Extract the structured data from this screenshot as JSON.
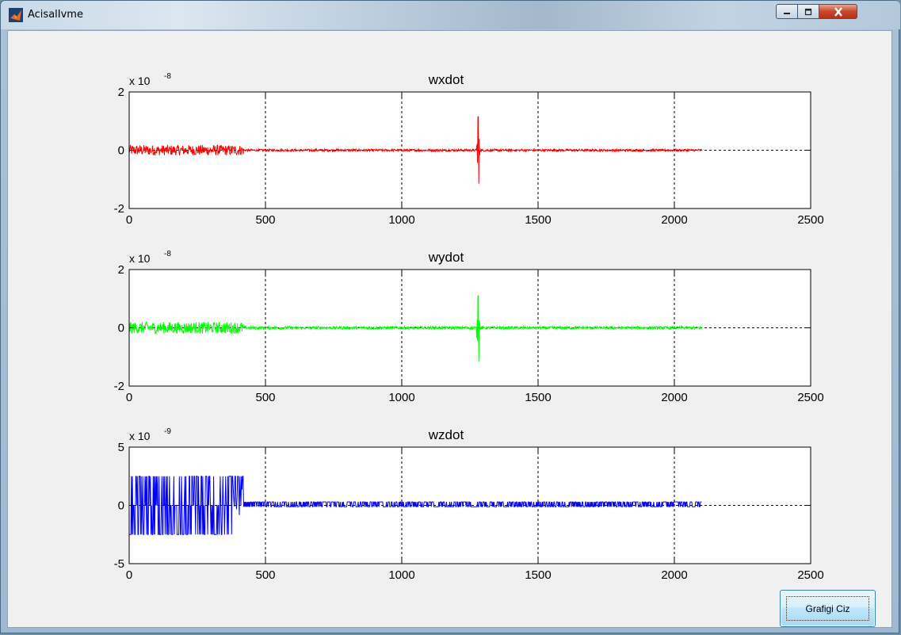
{
  "window": {
    "title": "AcisalIvme",
    "controls": {
      "minimize_icon": "minimize-icon",
      "maximize_icon": "maximize-icon",
      "close_icon": "close-icon"
    }
  },
  "button": {
    "label": "Grafigi Ciz"
  },
  "chart_data": [
    {
      "type": "line",
      "title": "wxdot",
      "multiplier": "x 10",
      "exponent": "-8",
      "color": "#ff0000",
      "xlim": [
        0,
        2500
      ],
      "ylim": [
        -2,
        2
      ],
      "xticks": [
        "0",
        "500",
        "1000",
        "1500",
        "2000",
        "2500"
      ],
      "yticks": [
        "2",
        "0",
        "-2"
      ],
      "grid": true,
      "x_extent": [
        0,
        2100
      ],
      "noise_amplitude": {
        "x0_400": 0.18,
        "x400_2100": 0.04
      },
      "spike": {
        "x": 1280,
        "max": 1.15,
        "min": -1.15
      }
    },
    {
      "type": "line",
      "title": "wydot",
      "multiplier": "x 10",
      "exponent": "-8",
      "color": "#00ff00",
      "xlim": [
        0,
        2500
      ],
      "ylim": [
        -2,
        2
      ],
      "xticks": [
        "0",
        "500",
        "1000",
        "1500",
        "2000",
        "2500"
      ],
      "yticks": [
        "2",
        "0",
        "-2"
      ],
      "grid": true,
      "x_extent": [
        0,
        2100
      ],
      "noise_amplitude": {
        "x0_400": 0.2,
        "x400_2100": 0.05
      },
      "spike": {
        "x": 1280,
        "max": 1.1,
        "min": -1.15
      }
    },
    {
      "type": "line",
      "title": "wzdot",
      "multiplier": "x 10",
      "exponent": "-9",
      "color": "#0000ff",
      "xlim": [
        0,
        2500
      ],
      "ylim": [
        -5,
        5
      ],
      "xticks": [
        "0",
        "500",
        "1000",
        "1500",
        "2000",
        "2500"
      ],
      "yticks": [
        "5",
        "0",
        "-5"
      ],
      "grid": true,
      "x_extent": [
        0,
        2100
      ],
      "quantized_levels": [
        2.5,
        0,
        -2.5
      ],
      "small_level": 0.3,
      "transition_x": 420
    }
  ]
}
